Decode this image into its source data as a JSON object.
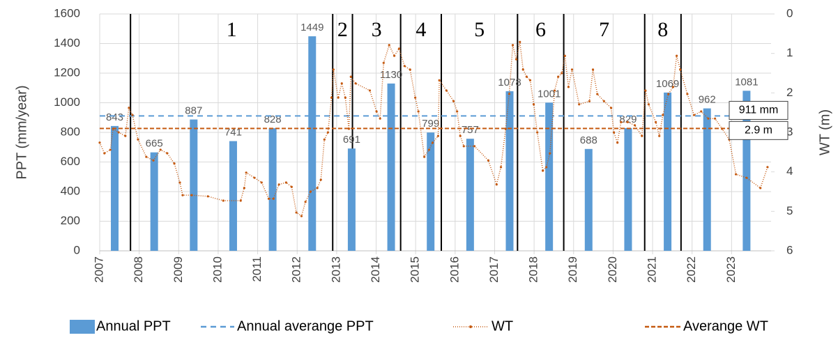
{
  "chart_data": {
    "type": "combo",
    "ylabel": "PPT (mm/year)",
    "y2label": "WT (m)",
    "xlim": [
      2007,
      2024
    ],
    "xticks": [
      2007,
      2008,
      2009,
      2010,
      2011,
      2012,
      2013,
      2014,
      2015,
      2016,
      2017,
      2018,
      2019,
      2020,
      2021,
      2022,
      2023
    ],
    "ylim": [
      0,
      1600
    ],
    "yticks": [
      0,
      200,
      400,
      600,
      800,
      1000,
      1200,
      1400,
      1600
    ],
    "y2lim": [
      6,
      0
    ],
    "y2ticks": [
      0,
      1,
      2,
      3,
      4,
      5,
      6
    ],
    "grid": true,
    "series": [
      {
        "name": "Annual PPT",
        "type": "bar",
        "color": "#5b9bd5",
        "x": [
          2007,
          2008,
          2009,
          2010,
          2011,
          2012,
          2013,
          2014,
          2015,
          2016,
          2017,
          2018,
          2019,
          2020,
          2021,
          2022,
          2023
        ],
        "values": [
          843,
          665,
          887,
          741,
          828,
          1449,
          691,
          1130,
          799,
          757,
          1078,
          1001,
          688,
          829,
          1069,
          962,
          1081
        ]
      },
      {
        "name": "WT",
        "type": "line",
        "axis": "y2",
        "color": "#c55a11",
        "x": [
          2007.0,
          2007.12,
          2007.27,
          2007.34,
          2007.48,
          2007.65,
          2007.74,
          2007.83,
          2007.97,
          2008.18,
          2008.36,
          2008.54,
          2008.71,
          2008.89,
          2009.03,
          2009.1,
          2009.33,
          2009.74,
          2010.13,
          2010.57,
          2010.66,
          2010.71,
          2010.92,
          2011.1,
          2011.28,
          2011.4,
          2011.54,
          2011.72,
          2011.86,
          2011.98,
          2012.11,
          2012.21,
          2012.34,
          2012.51,
          2012.6,
          2012.69,
          2012.78,
          2012.87,
          2012.92,
          2013.04,
          2013.13,
          2013.22,
          2013.31,
          2013.36,
          2013.48,
          2013.84,
          2014.01,
          2014.1,
          2014.19,
          2014.33,
          2014.46,
          2014.58,
          2014.72,
          2014.86,
          2014.99,
          2015.07,
          2015.22,
          2015.34,
          2015.43,
          2015.57,
          2015.6,
          2015.78,
          2015.96,
          2016.05,
          2016.13,
          2016.22,
          2016.49,
          2016.84,
          2017.05,
          2017.16,
          2017.28,
          2017.37,
          2017.46,
          2017.55,
          2017.64,
          2017.72,
          2017.81,
          2017.9,
          2017.99,
          2018.08,
          2018.22,
          2018.31,
          2018.4,
          2018.52,
          2018.61,
          2018.7,
          2018.78,
          2018.87,
          2018.96,
          2019.14,
          2019.4,
          2019.49,
          2019.6,
          2019.77,
          2019.95,
          2020.02,
          2020.11,
          2020.2,
          2020.37,
          2020.55,
          2020.73,
          2020.82,
          2020.9,
          2021.08,
          2021.17,
          2021.26,
          2021.4,
          2021.52,
          2021.61,
          2021.7,
          2021.88,
          2022.05,
          2022.23,
          2022.41,
          2022.58,
          2022.76,
          2022.94,
          2023.11,
          2023.38,
          2023.73,
          2023.91
        ],
        "values": [
          3.26,
          3.53,
          3.44,
          2.91,
          3.0,
          3.09,
          2.38,
          2.56,
          3.18,
          3.62,
          3.71,
          3.44,
          3.53,
          3.79,
          4.27,
          4.59,
          4.59,
          4.62,
          4.73,
          4.73,
          4.41,
          4.02,
          4.15,
          4.27,
          4.68,
          4.68,
          4.32,
          4.27,
          4.38,
          5.03,
          5.12,
          4.76,
          4.5,
          4.41,
          4.2,
          3.18,
          3.0,
          2.12,
          1.41,
          2.12,
          1.76,
          2.12,
          2.91,
          1.59,
          1.76,
          1.94,
          2.47,
          2.65,
          1.24,
          0.79,
          1.06,
          0.88,
          1.32,
          1.41,
          2.12,
          2.47,
          3.62,
          3.44,
          3.26,
          3.09,
          1.68,
          1.94,
          2.21,
          2.47,
          3.09,
          3.35,
          3.35,
          3.71,
          4.32,
          3.88,
          2.91,
          2.03,
          0.79,
          1.15,
          0.71,
          1.41,
          1.59,
          1.68,
          2.29,
          3.0,
          3.97,
          3.88,
          3.53,
          1.94,
          1.59,
          1.5,
          1.06,
          1.85,
          1.41,
          2.29,
          2.21,
          1.41,
          2.03,
          2.21,
          2.38,
          3.0,
          3.26,
          2.74,
          2.74,
          2.82,
          3.09,
          1.94,
          2.29,
          2.74,
          3.09,
          2.56,
          2.03,
          1.85,
          1.06,
          1.41,
          2.03,
          2.56,
          2.47,
          2.65,
          2.65,
          2.91,
          3.18,
          4.06,
          4.15,
          4.41,
          3.88
        ]
      }
    ],
    "reference_lines": [
      {
        "name": "Annual averange PPT",
        "value": 911,
        "label": "911 mm",
        "color": "#5b9bd5"
      },
      {
        "name": "Averange WT",
        "axis": "y2",
        "value": 2.9,
        "label": "2.9 m",
        "color": "#c55a11"
      }
    ],
    "periods": {
      "boundaries": [
        2007.78,
        2012.9,
        2013.4,
        2014.62,
        2015.65,
        2017.58,
        2018.75,
        2020.8,
        2021.72
      ],
      "labels": [
        "1",
        "2",
        "3",
        "4",
        "5",
        "6",
        "7",
        "8"
      ]
    }
  }
}
